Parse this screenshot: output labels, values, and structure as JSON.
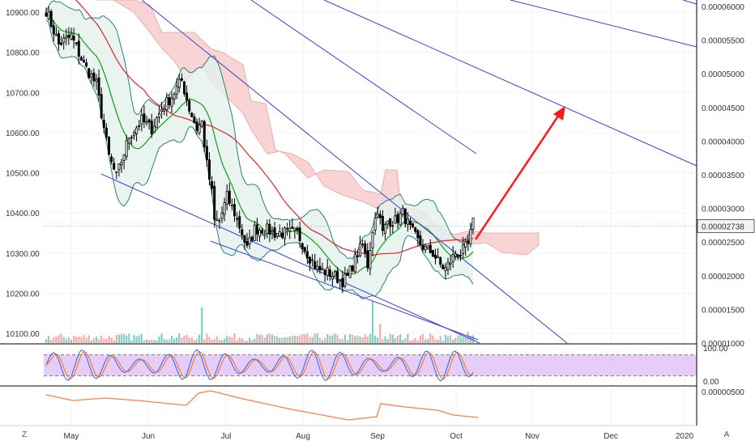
{
  "chart_data": {
    "type": "candlestick",
    "left_axis": {
      "ticks": [
        "10900.00",
        "10800.00",
        "10700.00",
        "10600.00",
        "10500.00",
        "10400.00",
        "10300.00",
        "10200.00",
        "10100.00"
      ],
      "tick_values": [
        10900,
        10800,
        10700,
        10600,
        10500,
        10400,
        10300,
        10200,
        10100
      ]
    },
    "right_axis": {
      "ticks": [
        "0.00006000",
        "0.00005500",
        "0.00005000",
        "0.00004500",
        "0.00004000",
        "0.00003500",
        "0.00003000",
        "0.00002500",
        "0.00002000",
        "0.00001500",
        "0.00001000"
      ],
      "tick_values": [
        6e-05,
        5.5e-05,
        5e-05,
        4.5e-05,
        4e-05,
        3.5e-05,
        3e-05,
        2.5e-05,
        2e-05,
        1.5e-05,
        1e-05
      ],
      "last_price": "0.00002738",
      "last_price_value": 2.738e-05
    },
    "x_axis": {
      "months": [
        "May",
        "Jun",
        "Jul",
        "Aug",
        "Sep",
        "Oct",
        "Nov",
        "Dec",
        "2020"
      ]
    },
    "stoch_rsi": {
      "ticks": [
        "100.00",
        "0.00"
      ],
      "band_upper": 80,
      "band_lower": 20,
      "colors": {
        "k": "#2962ff",
        "d": "#ff6d00",
        "band": "#e1c4f7"
      }
    },
    "lower_indicator": {
      "ticks": [
        "0.00000500"
      ],
      "color": "#ff7f3f"
    },
    "colors": {
      "candle": "#000000",
      "bollinger": "#26807a",
      "bollinger_fill": "#e3f1ee",
      "ma_fast": "#21a321",
      "ma_slow": "#e52222",
      "cloud_red": "#f7c6c6",
      "trendline": "#3f3fd6",
      "target_arrow": "#ff1a1a",
      "volume_up": "#7fd0c4",
      "volume_down": "#f5a9a9"
    }
  },
  "ui": {
    "bottom_left": "Z",
    "bottom_right": "A",
    "axis_corner": "ⓘ"
  }
}
